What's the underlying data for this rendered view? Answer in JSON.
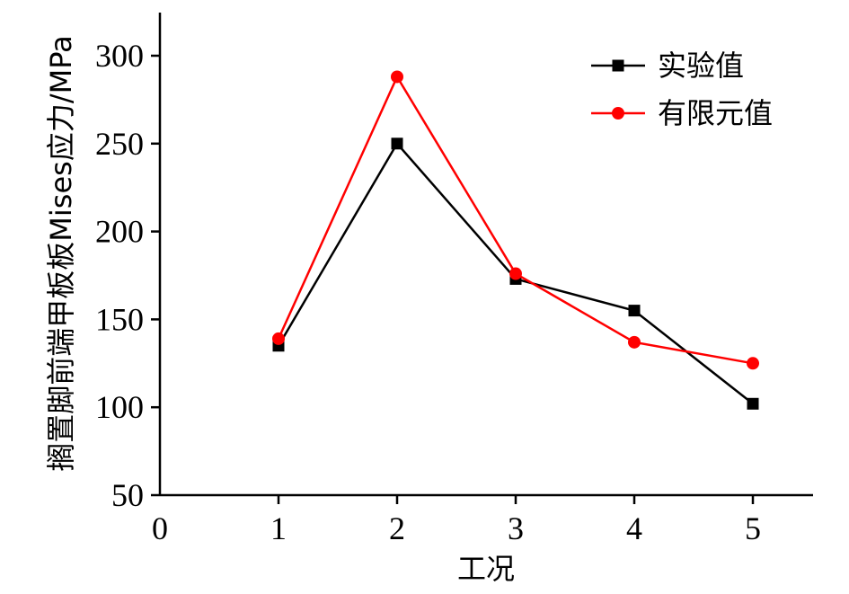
{
  "chart_data": {
    "type": "line",
    "title": "",
    "xlabel": "工况",
    "ylabel": "搁置脚前端甲板板Mises应力/MPa",
    "x": [
      1,
      2,
      3,
      4,
      5
    ],
    "xlim": [
      0,
      5.5
    ],
    "ylim": [
      50,
      325
    ],
    "xticks": [
      "0",
      "1",
      "2",
      "3",
      "4",
      "5"
    ],
    "yticks": [
      "50",
      "100",
      "150",
      "200",
      "250",
      "300"
    ],
    "grid": false,
    "legend_position": "top-right",
    "series": [
      {
        "name": "实验值",
        "values": [
          135,
          250,
          173,
          155,
          102
        ],
        "color": "#000000",
        "marker": "square"
      },
      {
        "name": "有限元值",
        "values": [
          139,
          288,
          176,
          137,
          125
        ],
        "color": "#ff0000",
        "marker": "circle"
      }
    ]
  }
}
